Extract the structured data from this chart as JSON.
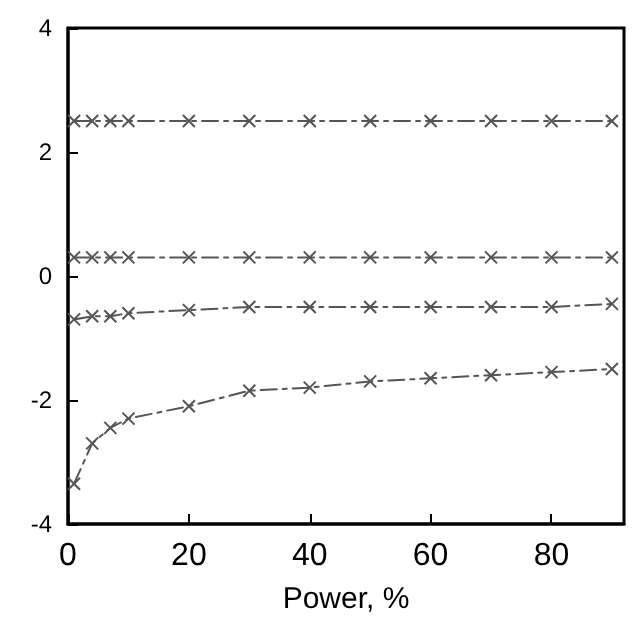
{
  "chart_data": {
    "type": "line",
    "xlabel": "Power, %",
    "x": [
      1,
      4,
      7,
      10,
      20,
      30,
      40,
      50,
      60,
      70,
      80,
      90
    ],
    "series": [
      {
        "color": "#555555",
        "values": [
          2.5,
          2.5,
          2.5,
          2.5,
          2.5,
          2.5,
          2.5,
          2.5,
          2.5,
          2.5,
          2.5,
          2.5
        ]
      },
      {
        "color": "#555555",
        "values": [
          0.3,
          0.3,
          0.3,
          0.3,
          0.3,
          0.3,
          0.3,
          0.3,
          0.3,
          0.3,
          0.3,
          0.3
        ]
      },
      {
        "color": "#555555",
        "values": [
          -0.7,
          -0.65,
          -0.65,
          -0.6,
          -0.55,
          -0.5,
          -0.5,
          -0.5,
          -0.5,
          -0.5,
          -0.5,
          -0.45
        ]
      },
      {
        "color": "#555555",
        "values": [
          -3.35,
          -2.7,
          -2.45,
          -2.3,
          -2.1,
          -1.85,
          -1.8,
          -1.7,
          -1.65,
          -1.6,
          -1.55,
          -1.5
        ]
      }
    ],
    "xlim": [
      0,
      92
    ],
    "xticks": [
      0,
      20,
      40,
      60,
      80
    ],
    "ylim": [
      -4,
      4
    ],
    "yticks": [
      -4,
      -2,
      0,
      2,
      4
    ],
    "grid": false,
    "marker": "cross",
    "line_style": "dashed"
  }
}
